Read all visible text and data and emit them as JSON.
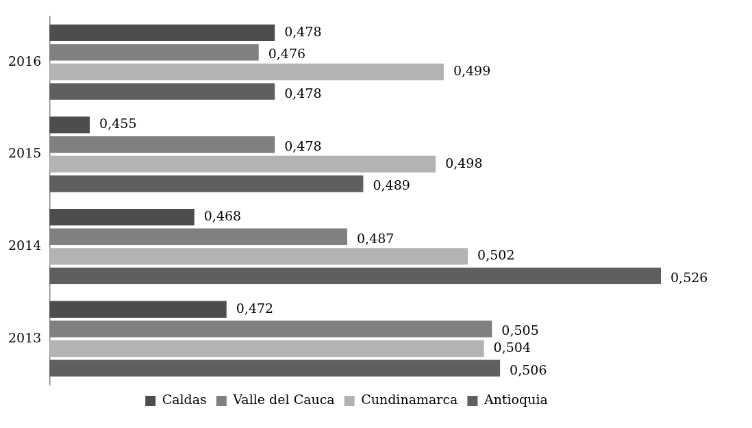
{
  "chart_data": {
    "type": "bar",
    "orientation": "horizontal",
    "categories": [
      "2016",
      "2015",
      "2014",
      "2013"
    ],
    "series": [
      {
        "name": "Caldas",
        "color": "#4d4d4d",
        "values": [
          0.478,
          0.455,
          0.468,
          0.472
        ],
        "value_labels": [
          "0,478",
          "0,455",
          "0,468",
          "0,472"
        ]
      },
      {
        "name": "Valle del Cauca",
        "color": "#808080",
        "values": [
          0.476,
          0.478,
          0.487,
          0.505
        ],
        "value_labels": [
          "0,476",
          "0,478",
          "0,487",
          "0,505"
        ]
      },
      {
        "name": "Cundinamarca",
        "color": "#b3b3b3",
        "values": [
          0.499,
          0.498,
          0.502,
          0.504
        ],
        "value_labels": [
          "0,499",
          "0,498",
          "0,502",
          "0,504"
        ]
      },
      {
        "name": "Antioquia",
        "color": "#5f5f5f",
        "values": [
          0.478,
          0.489,
          0.526,
          0.506
        ],
        "value_labels": [
          "0,478",
          "0,489",
          "0,526",
          "0,506"
        ]
      }
    ],
    "tick_labels": "y",
    "grid": false,
    "legend": "bottom"
  }
}
